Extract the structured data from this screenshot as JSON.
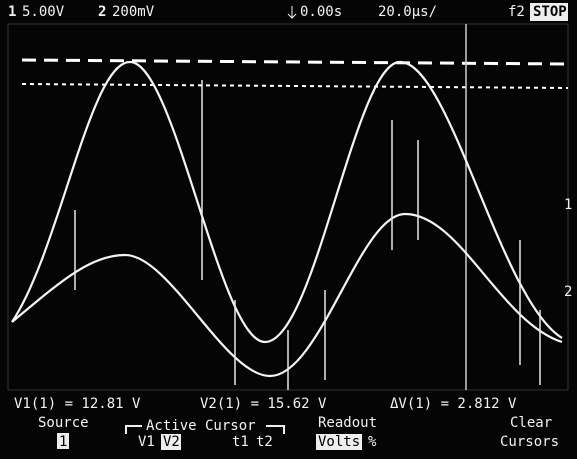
{
  "status_bar": {
    "ch1_number": "1",
    "ch1_scale": "5.00V",
    "ch2_number": "2",
    "ch2_scale": "200mV",
    "time_offset": "0.00s",
    "time_scale": "20.0µs/",
    "trigger": "f2",
    "run_state": "STOP"
  },
  "markers": {
    "ch1": "1",
    "ch2": "2"
  },
  "readouts": {
    "v1": "V1(1) = 12.81 V",
    "v2": "V2(1) = 15.62 V",
    "delta_v": "ΔV(1) = 2.812 V"
  },
  "softkeys": {
    "source": {
      "label": "Source",
      "value": "1"
    },
    "active_cursor": {
      "label": "Active Cursor",
      "options": [
        "V1",
        "V2"
      ]
    },
    "time_cursors": {
      "options": [
        "t1",
        "t2"
      ]
    },
    "readout": {
      "label": "Readout",
      "options": [
        "Volts",
        "%"
      ]
    },
    "clear": {
      "label": "Clear",
      "label2": "Cursors"
    }
  }
}
